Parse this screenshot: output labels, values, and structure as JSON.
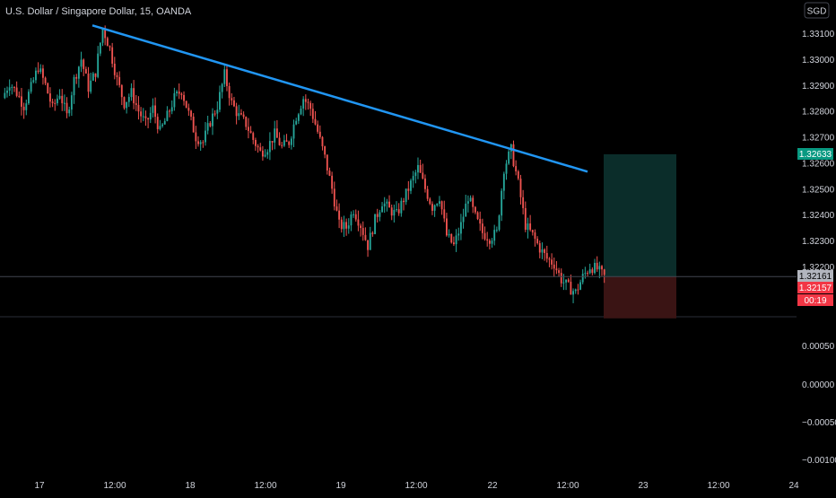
{
  "title": "U.S. Dollar / Singapore Dollar, 15, OANDA",
  "currency": "SGD",
  "colors": {
    "background": "#000000",
    "up": "#26a69a",
    "down": "#ef5350",
    "trendline": "#2196f3",
    "target_zone": "#0b2d2a",
    "stop_zone": "#3a1414",
    "target_label": "#089981",
    "stop_label": "#f23645",
    "current_label": "#b2b5be",
    "axis_text": "#d1d4dc"
  },
  "price_axis": {
    "ticks": [
      "1.33100",
      "1.33000",
      "1.32900",
      "1.32800",
      "1.32700",
      "1.32600",
      "1.32500",
      "1.32400",
      "1.32300",
      "1.32200"
    ],
    "labels": [
      {
        "text": "1.32633",
        "price": 1.32633,
        "kind": "target"
      },
      {
        "text": "1.32161",
        "price": 1.32161,
        "kind": "current"
      },
      {
        "text": "1.32157",
        "price": 1.32157,
        "kind": "stop"
      },
      {
        "text": "00:19",
        "price": 1.32121,
        "kind": "stop"
      }
    ]
  },
  "indicator_axis": {
    "ticks": [
      "0.00050",
      "0.00000",
      "−0.00050",
      "−0.00100"
    ]
  },
  "time_axis": {
    "ticks": [
      "17",
      "12:00",
      "18",
      "12:00",
      "19",
      "12:00",
      "22",
      "12:00",
      "23",
      "12:00",
      "24"
    ]
  },
  "chart_data": {
    "type": "candlestick",
    "symbol": "USDSGD",
    "interval": "15",
    "ylim": [
      1.3195,
      1.3316
    ],
    "x": [
      "17",
      "12:00",
      "18",
      "12:00",
      "19",
      "12:00",
      "22",
      "12:00",
      "23"
    ],
    "close_path": [
      1.3285,
      1.3291,
      1.3287,
      1.3282,
      1.3289,
      1.3297,
      1.329,
      1.3281,
      1.3287,
      1.3278,
      1.3292,
      1.33,
      1.3289,
      1.3295,
      1.3312,
      1.3304,
      1.3292,
      1.3283,
      1.3287,
      1.328,
      1.3275,
      1.3281,
      1.3272,
      1.3278,
      1.3285,
      1.3288,
      1.3279,
      1.327,
      1.3268,
      1.3276,
      1.3282,
      1.3294,
      1.3283,
      1.3278,
      1.3275,
      1.3269,
      1.3264,
      1.3266,
      1.3271,
      1.3266,
      1.3268,
      1.3278,
      1.3285,
      1.3281,
      1.3272,
      1.3262,
      1.325,
      1.3236,
      1.3235,
      1.3242,
      1.3236,
      1.3228,
      1.3238,
      1.3245,
      1.3242,
      1.324,
      1.3246,
      1.3252,
      1.3258,
      1.325,
      1.3243,
      1.3247,
      1.3232,
      1.3228,
      1.3236,
      1.3247,
      1.3239,
      1.3233,
      1.3231,
      1.3233,
      1.3258,
      1.3265,
      1.3252,
      1.3236,
      1.3232,
      1.3227,
      1.3223,
      1.3221,
      1.3215,
      1.3212,
      1.321,
      1.3216,
      1.322,
      1.3219,
      1.3216
    ],
    "trendline": [
      {
        "x": "16:30",
        "price": 1.3313
      },
      {
        "x": "22 20:00",
        "price": 1.32566
      }
    ],
    "position": {
      "type": "long",
      "entry": 1.32161,
      "target": 1.32633,
      "stop": 1.32
    },
    "last_price": 1.32161,
    "countdown": "00:19"
  }
}
